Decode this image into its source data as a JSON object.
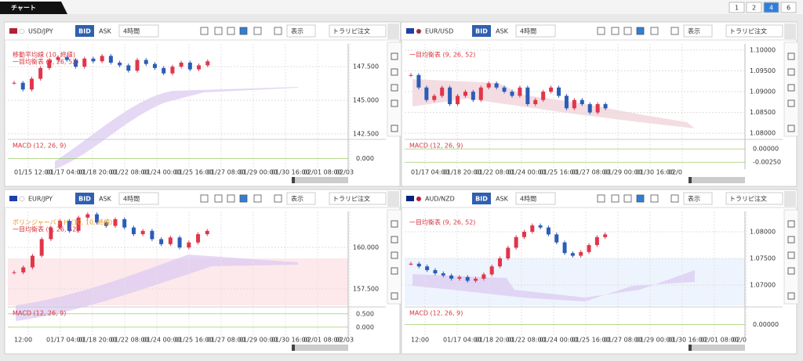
{
  "header": {
    "tab": "チャート",
    "pages": [
      "1",
      "2",
      "4",
      "6"
    ]
  },
  "panels": [
    {
      "pair": "USD/JPY",
      "bid": "BID",
      "ask": "ASK",
      "timeframe": "4時間",
      "display": "表示",
      "order": "トラリピ注文",
      "indicators": [
        "移動平均線 (10, 終値)",
        "一目均衡表 (9, 26, 52)"
      ],
      "macd_label": "MACD (12, 26, 9)",
      "ylim": [
        142.2,
        149.2
      ],
      "yticks": [
        {
          "value": 147.5,
          "label": "147.500"
        },
        {
          "value": 145,
          "label": "145.000"
        },
        {
          "value": 142.5,
          "label": "142.500"
        }
      ],
      "macd_ylim": [
        -0.5,
        1.0
      ],
      "macd_ticks": [
        {
          "value": 0,
          "label": "0.000"
        }
      ],
      "xlabels": [
        "01/15 12:00",
        "01/17 04:00",
        "01/18 20:00",
        "01/22 08:00",
        "01/24 00:00",
        "01/25 16:00",
        "01/27 08:00",
        "01/29 00:00",
        "01/30 16:00",
        "02/01 08:00",
        "02/03"
      ],
      "closes": [
        146.3,
        145.8,
        146.6,
        147.4,
        148.0,
        148.2,
        148.0,
        147.5,
        148.1,
        147.9,
        148.3,
        147.8,
        147.6,
        147.2,
        148.0,
        147.7,
        147.4,
        147.0,
        147.5,
        147.8,
        147.3,
        147.6,
        147.9
      ]
    },
    {
      "pair": "EUR/USD",
      "bid": "BID",
      "ask": "ASK",
      "timeframe": "4時間",
      "display": "表示",
      "order": "トラリピ注文",
      "indicators": [
        "一目均衡表 (9, 26, 52)"
      ],
      "macd_label": "MACD (12, 26, 9)",
      "ylim": [
        1.0789,
        1.1015
      ],
      "yticks": [
        {
          "value": 1.1,
          "label": "1.10000"
        },
        {
          "value": 1.095,
          "label": "1.09500"
        },
        {
          "value": 1.09,
          "label": "1.09000"
        },
        {
          "value": 1.085,
          "label": "1.08500"
        },
        {
          "value": 1.08,
          "label": "1.08000"
        }
      ],
      "macd_ylim": [
        -0.0035,
        0.0015
      ],
      "macd_ticks": [
        {
          "value": 0,
          "label": "0.00000"
        },
        {
          "value": -0.0025,
          "label": "-0.00250"
        }
      ],
      "xlabels": [
        "01/17 04:00",
        "01/18 20:00",
        "01/22 08:00",
        "01/24 00:00",
        "01/25 16:00",
        "01/27 08:00",
        "01/29 00:00",
        "01/30 16:00",
        "02/0"
      ],
      "closes": [
        1.094,
        1.091,
        1.088,
        1.089,
        1.091,
        1.087,
        1.089,
        1.09,
        1.088,
        1.091,
        1.092,
        1.091,
        1.09,
        1.089,
        1.091,
        1.087,
        1.088,
        1.09,
        1.091,
        1.089,
        1.086,
        1.088,
        1.087,
        1.085,
        1.087,
        1.086
      ]
    },
    {
      "pair": "EUR/JPY",
      "bid": "BID",
      "ask": "ASK",
      "timeframe": "4時間",
      "display": "表示",
      "order": "トラリピ注文",
      "indicators": [
        "ボリンジャーバンド (10, 10, 終値)",
        "一目均衡表 (9, 26, 52)"
      ],
      "macd_label": "MACD (12, 26, 9)",
      "ylim": [
        156.51,
        162.17
      ],
      "yticks": [
        {
          "value": 160,
          "label": "160.000"
        },
        {
          "value": 157.5,
          "label": "157.500"
        }
      ],
      "macd_ylim": [
        -0.3,
        0.7
      ],
      "macd_ticks": [
        {
          "value": 0.5,
          "label": "0.500"
        },
        {
          "value": 0,
          "label": "0.000"
        }
      ],
      "xlabels": [
        "12:00",
        "01/17 04:00",
        "01/18 20:00",
        "01/22 08:00",
        "01/24 00:00",
        "01/25 16:00",
        "01/27 08:00",
        "01/29 00:00",
        "01/30 16:00",
        "02/01 08:00",
        "02/03"
      ],
      "closes": [
        158.5,
        158.8,
        159.5,
        160.5,
        161.2,
        161.6,
        161.0,
        161.8,
        162.0,
        161.5,
        161.3,
        161.7,
        161.2,
        160.8,
        161.0,
        160.5,
        160.2,
        160.6,
        160.0,
        160.3,
        160.8,
        161.0
      ]
    },
    {
      "pair": "AUD/NZD",
      "bid": "BID",
      "ask": "ASK",
      "timeframe": "4時間",
      "display": "表示",
      "order": "トラリピ注文",
      "indicators": [
        "一目均衡表 (9, 26, 52)"
      ],
      "macd_label": "MACD (12, 26, 9)",
      "ylim": [
        1.06618,
        1.08382
      ],
      "yticks": [
        {
          "value": 1.08,
          "label": "1.08000"
        },
        {
          "value": 1.075,
          "label": "1.07500"
        },
        {
          "value": 1.07,
          "label": "1.07000"
        }
      ],
      "macd_ylim": [
        -0.001,
        0.0015
      ],
      "macd_ticks": [
        {
          "value": 0,
          "label": "0.00000"
        }
      ],
      "xlabels": [
        "12:00",
        "01/17 04:00",
        "01/18 20:00",
        "01/22 08:00",
        "01/24 00:00",
        "01/25 16:00",
        "01/27 08:00",
        "01/29 00:00",
        "01/30 16:00",
        "02/01 08:00",
        "02/0"
      ],
      "closes": [
        1.074,
        1.0735,
        1.0728,
        1.0722,
        1.0718,
        1.0712,
        1.0715,
        1.0708,
        1.0712,
        1.072,
        1.0735,
        1.075,
        1.077,
        1.079,
        1.08,
        1.0812,
        1.0808,
        1.0795,
        1.078,
        1.076,
        1.0755,
        1.0762,
        1.0775,
        1.079,
        1.0795
      ]
    }
  ]
}
